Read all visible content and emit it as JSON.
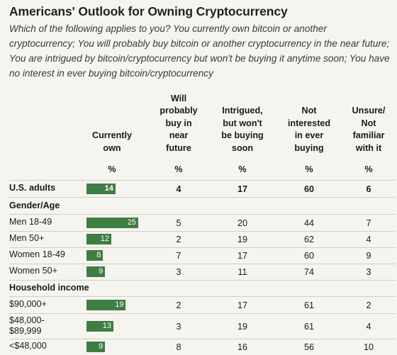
{
  "title": "Americans' Outlook for Owning Cryptocurrency",
  "subtitle": "Which of the following applies to you? You currently own bitcoin or another cryptocurrency; You will probably buy bitcoin or another cryptocurrency in the near future; You are intrigued by bitcoin/cryptocurrency but won't be buying it anytime soon; You have no interest in ever buying bitcoin/cryptocurrency",
  "colors": {
    "bar": "#3e7d44",
    "background": "#f5f4ee"
  },
  "chart_data": {
    "type": "table",
    "columns": [
      "Currently own",
      "Will probably buy in near future",
      "Intrigued, but won't be buying soon",
      "Not interested in ever buying",
      "Unsure/ Not familiar with it"
    ],
    "column_lines": [
      [
        "Currently",
        "own"
      ],
      [
        "Will",
        "probably",
        "buy in",
        "near",
        "future"
      ],
      [
        "Intrigued,",
        "but won't",
        "be buying",
        "soon"
      ],
      [
        "Not",
        "interested",
        "in ever",
        "buying"
      ],
      [
        "Unsure/",
        "Not",
        "familiar",
        "with it"
      ]
    ],
    "unit": "%",
    "bar_max": 30,
    "rows": [
      {
        "label": "U.S. adults",
        "bold": true,
        "values": [
          14,
          4,
          17,
          60,
          6
        ]
      },
      {
        "section": "Gender/Age"
      },
      {
        "label": "Men 18-49",
        "values": [
          25,
          5,
          20,
          44,
          7
        ]
      },
      {
        "label": "Men 50+",
        "values": [
          12,
          2,
          19,
          62,
          4
        ]
      },
      {
        "label": "Women 18-49",
        "values": [
          8,
          7,
          17,
          60,
          9
        ]
      },
      {
        "label": "Women 50+",
        "values": [
          9,
          3,
          11,
          74,
          3
        ]
      },
      {
        "section": "Household income"
      },
      {
        "label": "$90,000+",
        "values": [
          19,
          2,
          17,
          61,
          2
        ]
      },
      {
        "label": "$48,000-\n$89,999",
        "label_lines": [
          "$48,000-",
          "$89,999"
        ],
        "values": [
          13,
          3,
          19,
          61,
          4
        ]
      },
      {
        "label": "<$48,000",
        "values": [
          9,
          8,
          16,
          56,
          10
        ]
      }
    ]
  }
}
